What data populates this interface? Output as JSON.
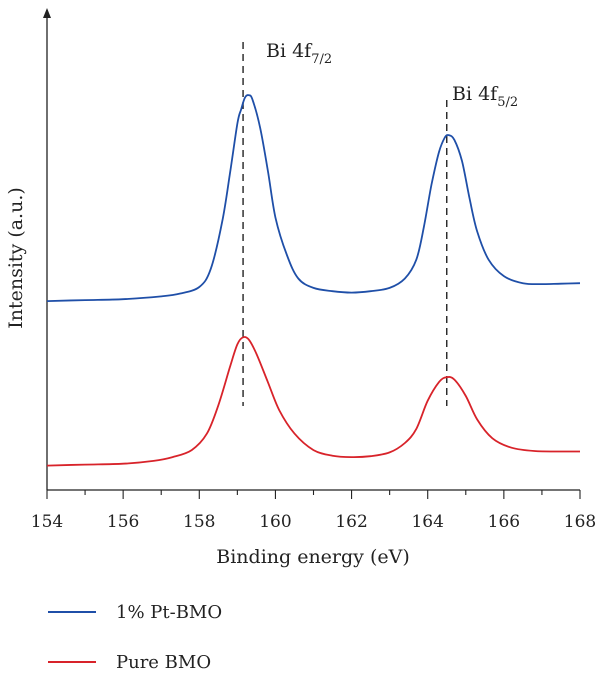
{
  "chart_data": {
    "type": "line",
    "xlabel": "Binding energy (eV)",
    "ylabel": "Intensity (a.u.)",
    "xlim": [
      154,
      168
    ],
    "ylim": [
      0,
      1
    ],
    "x_ticks": [
      "154",
      "156",
      "158",
      "160",
      "162",
      "164",
      "166",
      "168"
    ],
    "grid": false,
    "legend_position": "bottom-left, below plot",
    "series": [
      {
        "name": "1% Pt-BMO",
        "color": "#1f4fa8",
        "x": [
          154.0,
          155.0,
          156.0,
          157.0,
          157.5,
          158.0,
          158.3,
          158.6,
          158.8,
          159.0,
          159.1,
          159.2,
          159.3,
          159.4,
          159.6,
          159.8,
          160.0,
          160.3,
          160.6,
          161.0,
          161.5,
          162.0,
          162.5,
          163.0,
          163.4,
          163.7,
          163.9,
          164.1,
          164.3,
          164.45,
          164.55,
          164.7,
          164.9,
          165.1,
          165.3,
          165.6,
          166.0,
          166.5,
          167.0,
          167.5,
          168.0
        ],
        "y": [
          0.402,
          0.404,
          0.406,
          0.412,
          0.418,
          0.432,
          0.47,
          0.57,
          0.67,
          0.78,
          0.81,
          0.835,
          0.84,
          0.83,
          0.77,
          0.68,
          0.58,
          0.5,
          0.45,
          0.43,
          0.423,
          0.42,
          0.423,
          0.43,
          0.45,
          0.49,
          0.56,
          0.65,
          0.72,
          0.75,
          0.755,
          0.745,
          0.7,
          0.62,
          0.55,
          0.49,
          0.455,
          0.44,
          0.438,
          0.439,
          0.44
        ]
      },
      {
        "name": "Pure BMO",
        "color": "#d8232a",
        "x": [
          154.0,
          155.0,
          156.0,
          156.8,
          157.3,
          157.8,
          158.2,
          158.5,
          158.8,
          159.0,
          159.15,
          159.3,
          159.5,
          159.8,
          160.1,
          160.5,
          161.0,
          161.5,
          162.0,
          162.5,
          163.0,
          163.4,
          163.7,
          164.0,
          164.3,
          164.5,
          164.7,
          165.0,
          165.3,
          165.7,
          166.2,
          166.8,
          167.5,
          168.0
        ],
        "y": [
          0.052,
          0.054,
          0.056,
          0.062,
          0.07,
          0.085,
          0.12,
          0.18,
          0.26,
          0.31,
          0.325,
          0.32,
          0.29,
          0.23,
          0.17,
          0.12,
          0.085,
          0.073,
          0.07,
          0.072,
          0.08,
          0.1,
          0.13,
          0.19,
          0.23,
          0.24,
          0.235,
          0.2,
          0.15,
          0.11,
          0.09,
          0.083,
          0.082,
          0.082
        ]
      }
    ],
    "annotations": [
      {
        "main": "Bi 4f",
        "sub": "7/2",
        "x": 159.15
      },
      {
        "main": "Bi 4f",
        "sub": "5/2",
        "x": 164.5
      }
    ]
  }
}
